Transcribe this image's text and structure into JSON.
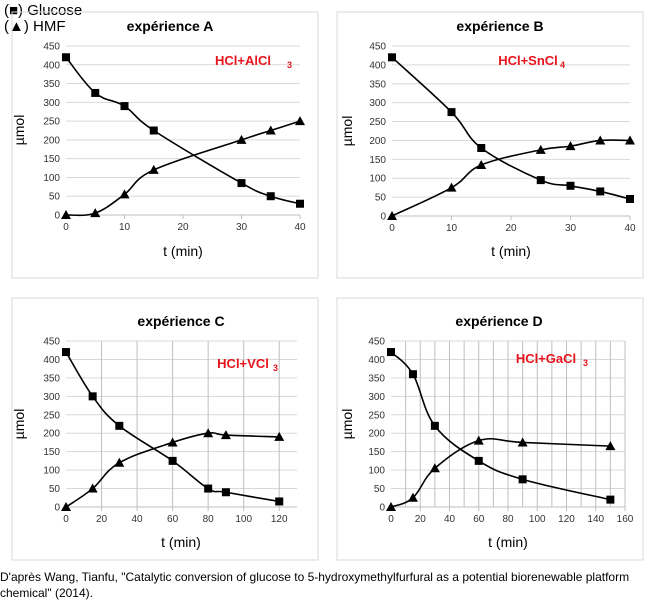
{
  "legend": {
    "glucose": "(■) Glucose",
    "hmf": "(▲) HMF"
  },
  "caption": "D'après Wang, Tianfu, \"Catalytic conversion of glucose to 5-hydroxymethylfurfural as a potential biorenewable platform\nchemical\" (2014).",
  "chart_data": [
    {
      "type": "line",
      "title": "expérience A",
      "annotation": "HCl+AlCl₃",
      "xlabel": "t (min)",
      "ylabel": "µmol",
      "xlim": [
        0,
        40
      ],
      "ylim": [
        0,
        450
      ],
      "x_ticks": [
        0,
        10,
        20,
        30,
        40
      ],
      "y_ticks": [
        0,
        50,
        100,
        150,
        200,
        250,
        300,
        350,
        400,
        450
      ],
      "grid": "horizontal",
      "series": [
        {
          "marker": "square",
          "x": [
            0,
            5,
            10,
            15,
            30,
            35,
            40
          ],
          "y": [
            420,
            325,
            290,
            225,
            85,
            50,
            30
          ]
        },
        {
          "marker": "triangle",
          "x": [
            0,
            5,
            10,
            15,
            30,
            35,
            40
          ],
          "y": [
            0,
            5,
            55,
            120,
            200,
            225,
            250
          ]
        }
      ]
    },
    {
      "type": "line",
      "title": "expérience B",
      "annotation": "HCl+SnCl₄",
      "xlabel": "t (min)",
      "ylabel": "µmol",
      "xlim": [
        0,
        40
      ],
      "ylim": [
        0,
        450
      ],
      "x_ticks": [
        0,
        10,
        20,
        30,
        40
      ],
      "y_ticks": [
        0,
        50,
        100,
        150,
        200,
        250,
        300,
        350,
        400,
        450
      ],
      "grid": "horizontal",
      "series": [
        {
          "marker": "square",
          "x": [
            0,
            10,
            15,
            25,
            30,
            35,
            40
          ],
          "y": [
            420,
            275,
            180,
            95,
            80,
            65,
            45
          ]
        },
        {
          "marker": "triangle",
          "x": [
            0,
            10,
            15,
            25,
            30,
            35,
            40
          ],
          "y": [
            0,
            75,
            135,
            175,
            185,
            200,
            200
          ]
        }
      ]
    },
    {
      "type": "line",
      "title": "expérience C",
      "annotation": "HCl+VCl₃",
      "xlabel": "t (min)",
      "ylabel": "µmol",
      "xlim": [
        0,
        130
      ],
      "ylim": [
        0,
        450
      ],
      "x_ticks": [
        0,
        20,
        40,
        60,
        80,
        100,
        120
      ],
      "y_ticks": [
        0,
        50,
        100,
        150,
        200,
        250,
        300,
        350,
        400,
        450
      ],
      "grid": "both",
      "series": [
        {
          "marker": "square",
          "x": [
            0,
            15,
            30,
            60,
            80,
            90,
            120
          ],
          "y": [
            420,
            300,
            220,
            125,
            50,
            40,
            15
          ]
        },
        {
          "marker": "triangle",
          "x": [
            0,
            15,
            30,
            60,
            80,
            90,
            120
          ],
          "y": [
            0,
            50,
            120,
            175,
            200,
            195,
            190
          ]
        }
      ]
    },
    {
      "type": "line",
      "title": "expérience D",
      "annotation": "HCl+GaCl₃",
      "xlabel": "t (min)",
      "ylabel": "µmol",
      "xlim": [
        0,
        160
      ],
      "ylim": [
        0,
        450
      ],
      "x_ticks": [
        0,
        10,
        20,
        30,
        40,
        50,
        60,
        70,
        80,
        90,
        100,
        110,
        120,
        130,
        140,
        150,
        160
      ],
      "x_tick_labels": [
        0,
        20,
        40,
        60,
        80,
        100,
        120,
        140,
        160
      ],
      "y_ticks": [
        0,
        50,
        100,
        150,
        200,
        250,
        300,
        350,
        400,
        450
      ],
      "grid": "both",
      "series": [
        {
          "marker": "square",
          "x": [
            0,
            15,
            30,
            60,
            90,
            150
          ],
          "y": [
            420,
            360,
            220,
            125,
            75,
            20
          ]
        },
        {
          "marker": "triangle",
          "x": [
            0,
            15,
            30,
            60,
            90,
            150
          ],
          "y": [
            0,
            25,
            105,
            180,
            175,
            165
          ]
        }
      ]
    }
  ]
}
